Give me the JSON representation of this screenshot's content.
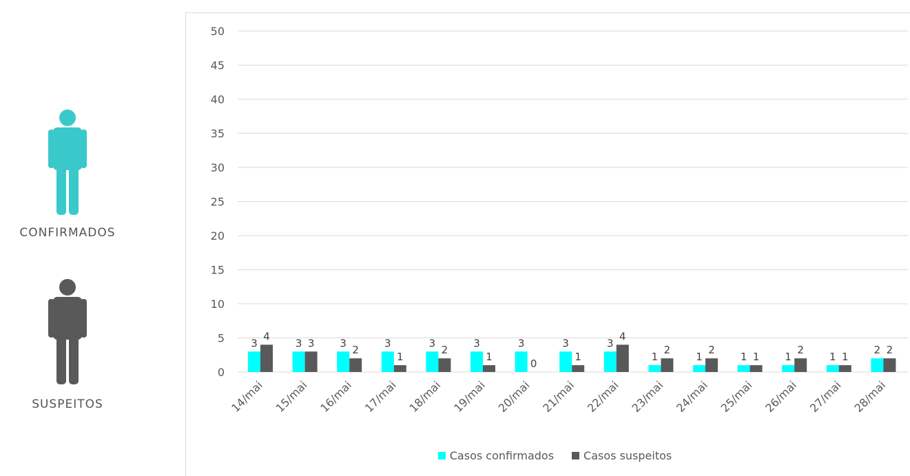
{
  "sidebar": {
    "confirmed_label": "CONFIRMADOS",
    "suspected_label": "SUSPEITOS",
    "confirmed_icon": "person-icon",
    "suspected_icon": "person-icon"
  },
  "colors": {
    "confirmed": "#00ffff",
    "suspected": "#595959",
    "icon_confirmed": "#3ac9cb",
    "icon_suspected": "#595959",
    "gridline": "#d9d9d9"
  },
  "chart_data": {
    "type": "bar",
    "categories": [
      "14/mai",
      "15/mai",
      "16/mai",
      "17/mai",
      "18/mai",
      "19/mai",
      "20/mai",
      "21/mai",
      "22/mai",
      "23/mai",
      "24/mai",
      "25/mai",
      "26/mai",
      "27/mai",
      "28/mai"
    ],
    "series": [
      {
        "name": "Casos confirmados",
        "values": [
          3,
          3,
          3,
          3,
          3,
          3,
          3,
          3,
          3,
          1,
          1,
          1,
          1,
          1,
          2
        ]
      },
      {
        "name": "Casos suspeitos",
        "values": [
          4,
          3,
          2,
          1,
          2,
          1,
          0,
          1,
          4,
          2,
          2,
          1,
          2,
          1,
          2
        ]
      }
    ],
    "yticks": [
      0,
      5,
      10,
      15,
      20,
      25,
      30,
      35,
      40,
      45,
      50
    ],
    "ylim": [
      0,
      50
    ],
    "grid": true,
    "legend_position": "bottom"
  }
}
